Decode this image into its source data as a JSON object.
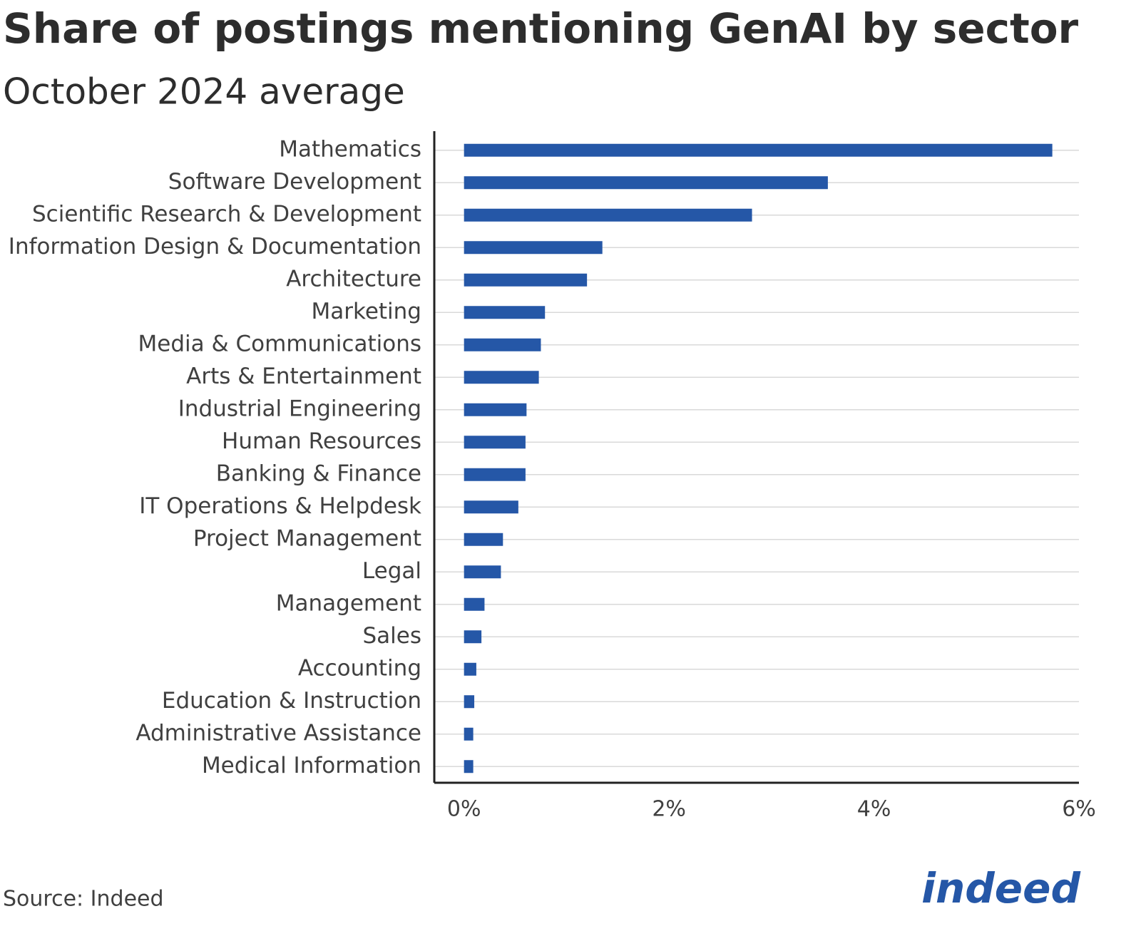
{
  "chart_data": {
    "type": "barh",
    "title": "Share of postings mentioning GenAI by sector",
    "subtitle": "October 2024 average",
    "source": "Source: Indeed",
    "logo": "indeed",
    "categories": [
      "Mathematics",
      "Software Development",
      "Scientific Research & Development",
      "Information Design & Documentation",
      "Architecture",
      "Marketing",
      "Media & Communications",
      "Arts & Entertainment",
      "Industrial Engineering",
      "Human Resources",
      "Banking & Finance",
      "IT Operations & Helpdesk",
      "Project Management",
      "Legal",
      "Management",
      "Sales",
      "Accounting",
      "Education & Instruction",
      "Administrative Assistance",
      "Medical Information"
    ],
    "values": [
      5.74,
      3.55,
      2.81,
      1.35,
      1.2,
      0.79,
      0.75,
      0.73,
      0.61,
      0.6,
      0.6,
      0.53,
      0.38,
      0.36,
      0.2,
      0.17,
      0.12,
      0.1,
      0.09,
      0.09
    ],
    "color": "#2557a7",
    "xlim": [
      -0.29,
      6
    ],
    "xticks": [
      {
        "value": 0,
        "label": "0%"
      },
      {
        "value": 2,
        "label": "2%"
      },
      {
        "value": 4,
        "label": "4%"
      },
      {
        "value": 6,
        "label": "6%"
      }
    ],
    "grid": true
  }
}
